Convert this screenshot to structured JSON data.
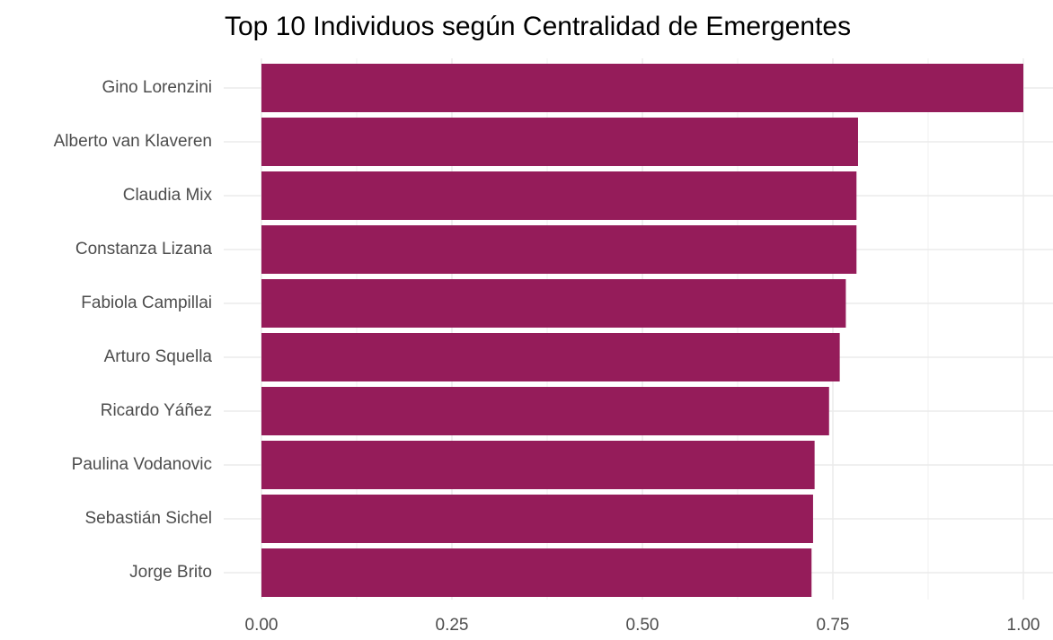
{
  "chart_data": {
    "type": "bar",
    "orientation": "horizontal",
    "title": "Top 10 Individuos según Centralidad de Emergentes",
    "categories": [
      "Gino Lorenzini",
      "Alberto van Klaveren",
      "Claudia Mix",
      "Constanza Lizana",
      "Fabiola Campillai",
      "Arturo Squella",
      "Ricardo Yáñez",
      "Paulina Vodanovic",
      "Sebastián Sichel",
      "Jorge Brito"
    ],
    "values": [
      1.0,
      0.783,
      0.781,
      0.781,
      0.767,
      0.759,
      0.745,
      0.726,
      0.724,
      0.722
    ],
    "color": "#951c5a",
    "xlim": [
      0,
      1
    ],
    "xticks": [
      {
        "value": 0,
        "label": "0.00"
      },
      {
        "value": 0.25,
        "label": "0.25"
      },
      {
        "value": 0.5,
        "label": "0.50"
      },
      {
        "value": 0.75,
        "label": "0.75"
      },
      {
        "value": 1,
        "label": "1.00"
      }
    ],
    "grid": true
  }
}
